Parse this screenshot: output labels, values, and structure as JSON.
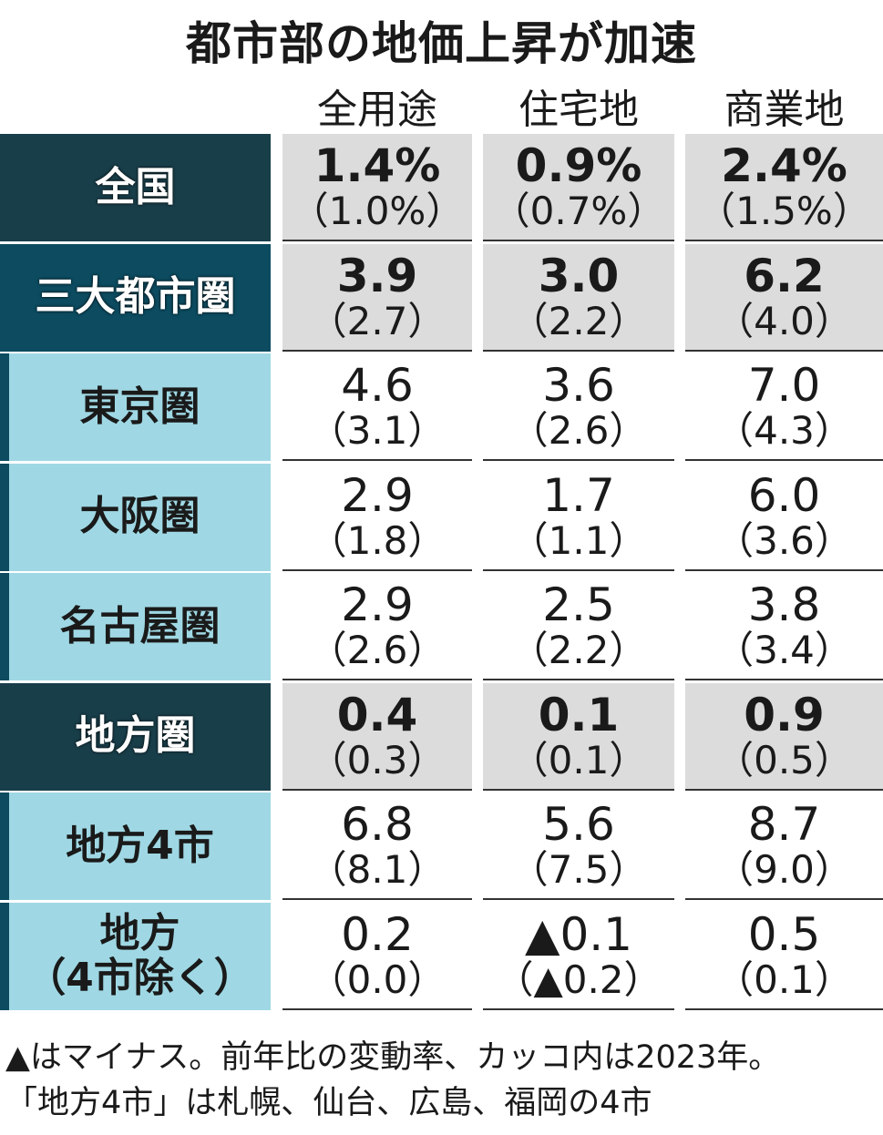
{
  "title": "都市部の地価上昇が加速",
  "columns": [
    "全用途",
    "住宅地",
    "商業地"
  ],
  "rows": [
    {
      "label": [
        "全国"
      ],
      "style": "dark",
      "cells": [
        {
          "main": "1.4%",
          "sub": "（1.0%）"
        },
        {
          "main": "0.9%",
          "sub": "（0.7%）"
        },
        {
          "main": "2.4%",
          "sub": "（1.5%）"
        }
      ]
    },
    {
      "label": [
        "三大都市圏"
      ],
      "style": "teal",
      "cells": [
        {
          "main": "3.9",
          "sub": "（2.7）"
        },
        {
          "main": "3.0",
          "sub": "（2.2）"
        },
        {
          "main": "6.2",
          "sub": "（4.0）"
        }
      ]
    },
    {
      "label": [
        "東京圏"
      ],
      "style": "light",
      "cells": [
        {
          "main": "4.6",
          "sub": "（3.1）"
        },
        {
          "main": "3.6",
          "sub": "（2.6）"
        },
        {
          "main": "7.0",
          "sub": "（4.3）"
        }
      ]
    },
    {
      "label": [
        "大阪圏"
      ],
      "style": "light",
      "cells": [
        {
          "main": "2.9",
          "sub": "（1.8）"
        },
        {
          "main": "1.7",
          "sub": "（1.1）"
        },
        {
          "main": "6.0",
          "sub": "（3.6）"
        }
      ]
    },
    {
      "label": [
        "名古屋圏"
      ],
      "style": "light",
      "cells": [
        {
          "main": "2.9",
          "sub": "（2.6）"
        },
        {
          "main": "2.5",
          "sub": "（2.2）"
        },
        {
          "main": "3.8",
          "sub": "（3.4）"
        }
      ]
    },
    {
      "label": [
        "地方圏"
      ],
      "style": "dark",
      "cells": [
        {
          "main": "0.4",
          "sub": "（0.3）"
        },
        {
          "main": "0.1",
          "sub": "（0.1）"
        },
        {
          "main": "0.9",
          "sub": "（0.5）"
        }
      ]
    },
    {
      "label": [
        "地方4市"
      ],
      "style": "light",
      "cells": [
        {
          "main": "6.8",
          "sub": "（8.1）"
        },
        {
          "main": "5.6",
          "sub": "（7.5）"
        },
        {
          "main": "8.7",
          "sub": "（9.0）"
        }
      ]
    },
    {
      "label": [
        "地方",
        "（4市除く）"
      ],
      "style": "light",
      "cells": [
        {
          "main": "0.2",
          "sub": "（0.0）"
        },
        {
          "main": "▲0.1",
          "sub": "（▲0.2）"
        },
        {
          "main": "0.5",
          "sub": "（0.1）"
        }
      ]
    }
  ],
  "notes": [
    "▲はマイナス。前年比の変動率、カッコ内は2023年。",
    "「地方4市」は札幌、仙台、広島、福岡の4市"
  ]
}
